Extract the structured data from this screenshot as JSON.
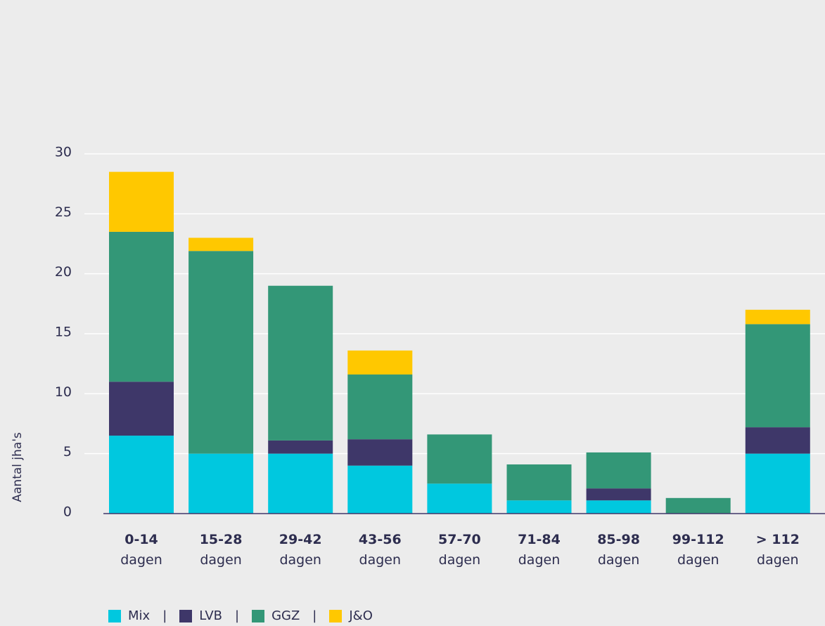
{
  "chart_data": {
    "type": "bar",
    "stacked": true,
    "ylabel": "Aantal jha's",
    "ylim": [
      0,
      30
    ],
    "yticks": [
      0,
      5,
      10,
      15,
      20,
      25,
      30
    ],
    "grid": true,
    "legend_position": "bottom-left",
    "categories": [
      {
        "main": "0-14",
        "sub": "dagen"
      },
      {
        "main": "15-28",
        "sub": "dagen"
      },
      {
        "main": "29-42",
        "sub": "dagen"
      },
      {
        "main": "43-56",
        "sub": "dagen"
      },
      {
        "main": "57-70",
        "sub": "dagen"
      },
      {
        "main": "71-84",
        "sub": "dagen"
      },
      {
        "main": "85-98",
        "sub": "dagen"
      },
      {
        "main": "99-112",
        "sub": "dagen"
      },
      {
        "main": "> 112",
        "sub": "dagen"
      }
    ],
    "series": [
      {
        "name": "Mix",
        "color": "#00c8df",
        "values": [
          6.5,
          5,
          5,
          4,
          2.5,
          1.1,
          1.1,
          0,
          5
        ]
      },
      {
        "name": "LVB",
        "color": "#3e3769",
        "values": [
          4.5,
          0,
          1.1,
          2.2,
          0,
          0,
          1,
          0,
          2.2
        ]
      },
      {
        "name": "GGZ",
        "color": "#339777",
        "values": [
          12.5,
          16.9,
          12.9,
          5.4,
          4.1,
          3,
          3,
          1.3,
          8.6
        ]
      },
      {
        "name": "J&O",
        "color": "#ffc800",
        "values": [
          5,
          1.1,
          0,
          2,
          0,
          0,
          0,
          0,
          1.2
        ]
      }
    ]
  },
  "legend": {
    "separator": "|"
  }
}
